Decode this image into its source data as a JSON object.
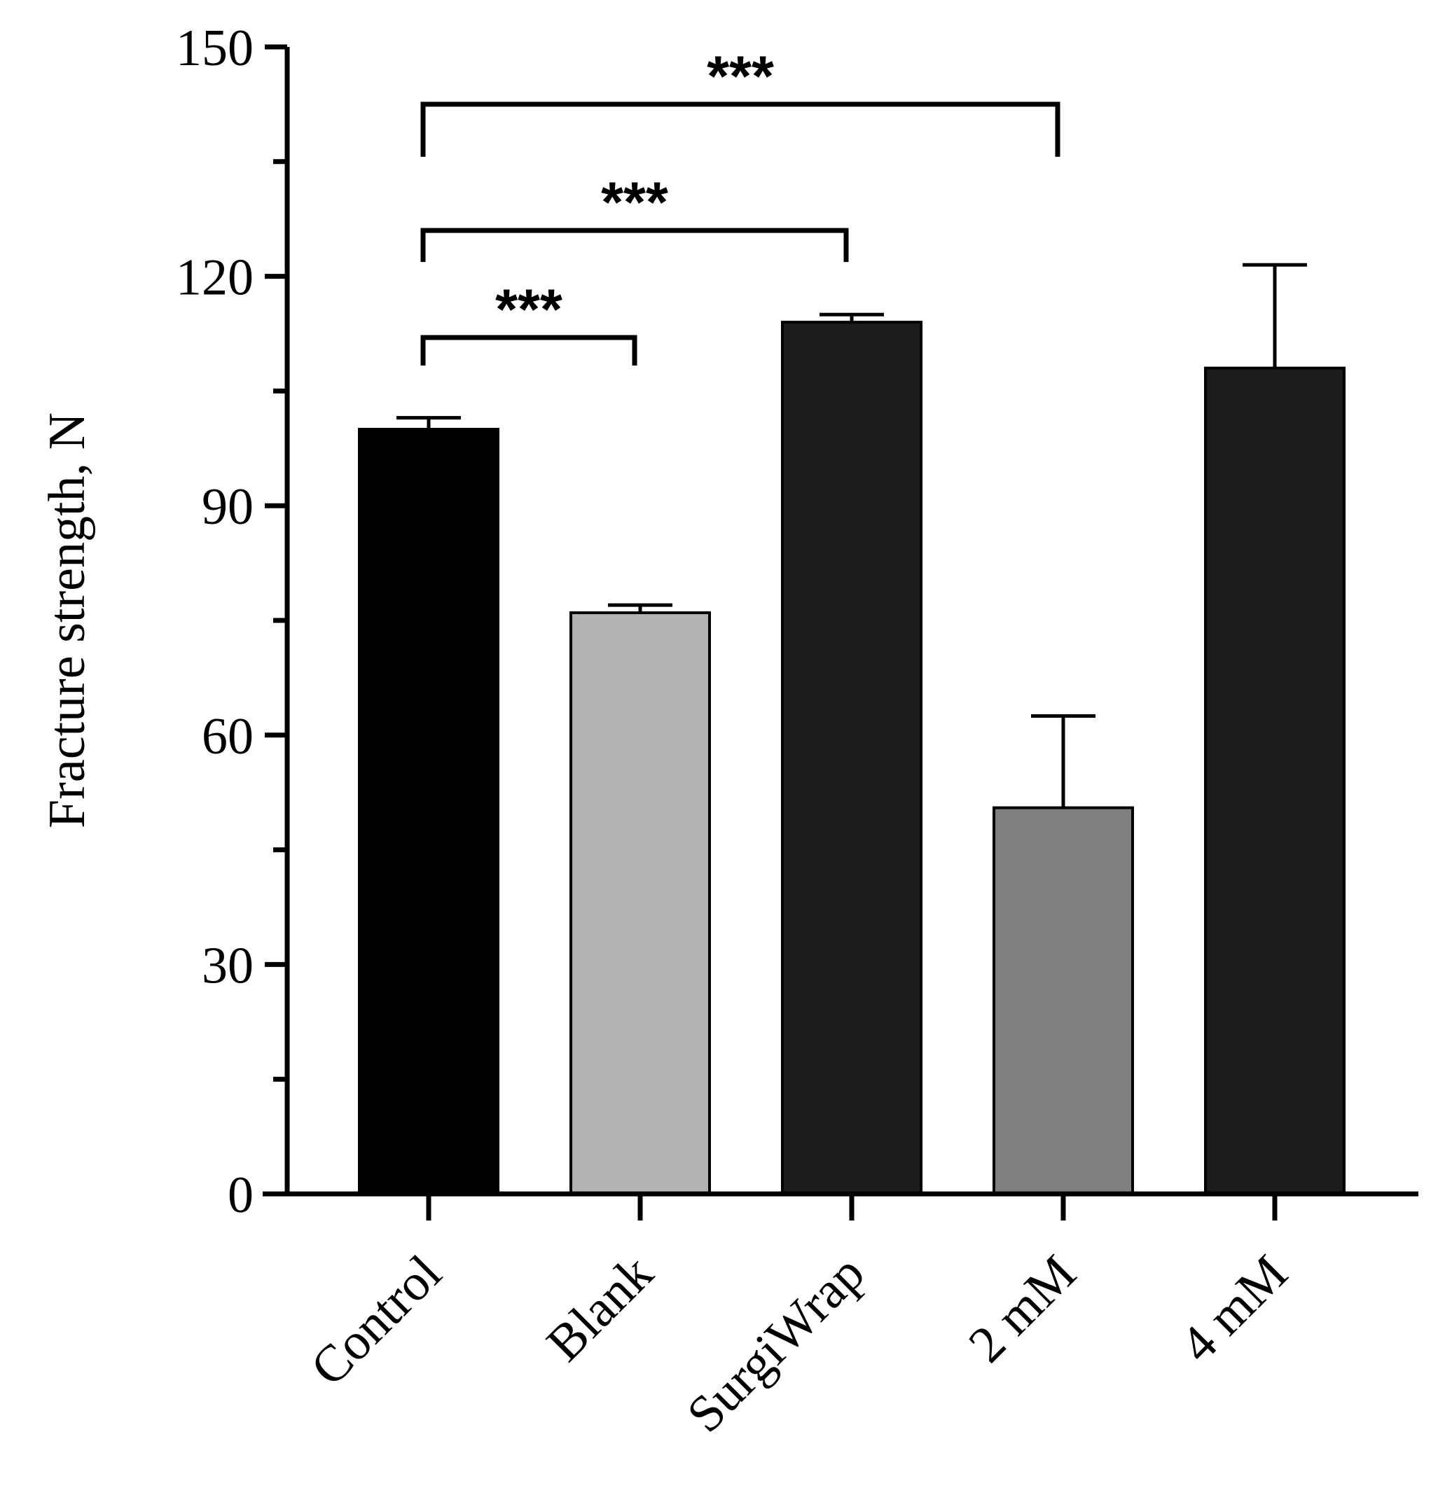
{
  "chart_data": {
    "type": "bar",
    "title": "",
    "xlabel": "",
    "ylabel": "Fracture strength, N",
    "ylim": [
      0,
      150
    ],
    "yticks": [
      0,
      30,
      60,
      90,
      120,
      150
    ],
    "yticks_minor": [
      15,
      45,
      75,
      105,
      135
    ],
    "categories": [
      "Control",
      "Blank",
      "SurgiWrap",
      "2 mM",
      "4 mM"
    ],
    "values": [
      100,
      76,
      114,
      50.5,
      108
    ],
    "errors": [
      1.5,
      1,
      1,
      12,
      13.5
    ],
    "bar_colors": [
      "#000000",
      "#b3b3b3",
      "#1c1c1c",
      "#808080",
      "#1c1c1c"
    ],
    "significance": [
      {
        "from": "Control",
        "to": "Blank",
        "label": "***",
        "y": 112
      },
      {
        "from": "Control",
        "to": "SurgiWrap",
        "label": "***",
        "y": 126
      },
      {
        "from": "Control",
        "to": "2 mM",
        "label": "***",
        "y": 142.5
      }
    ],
    "grid": false,
    "legend": "none"
  }
}
